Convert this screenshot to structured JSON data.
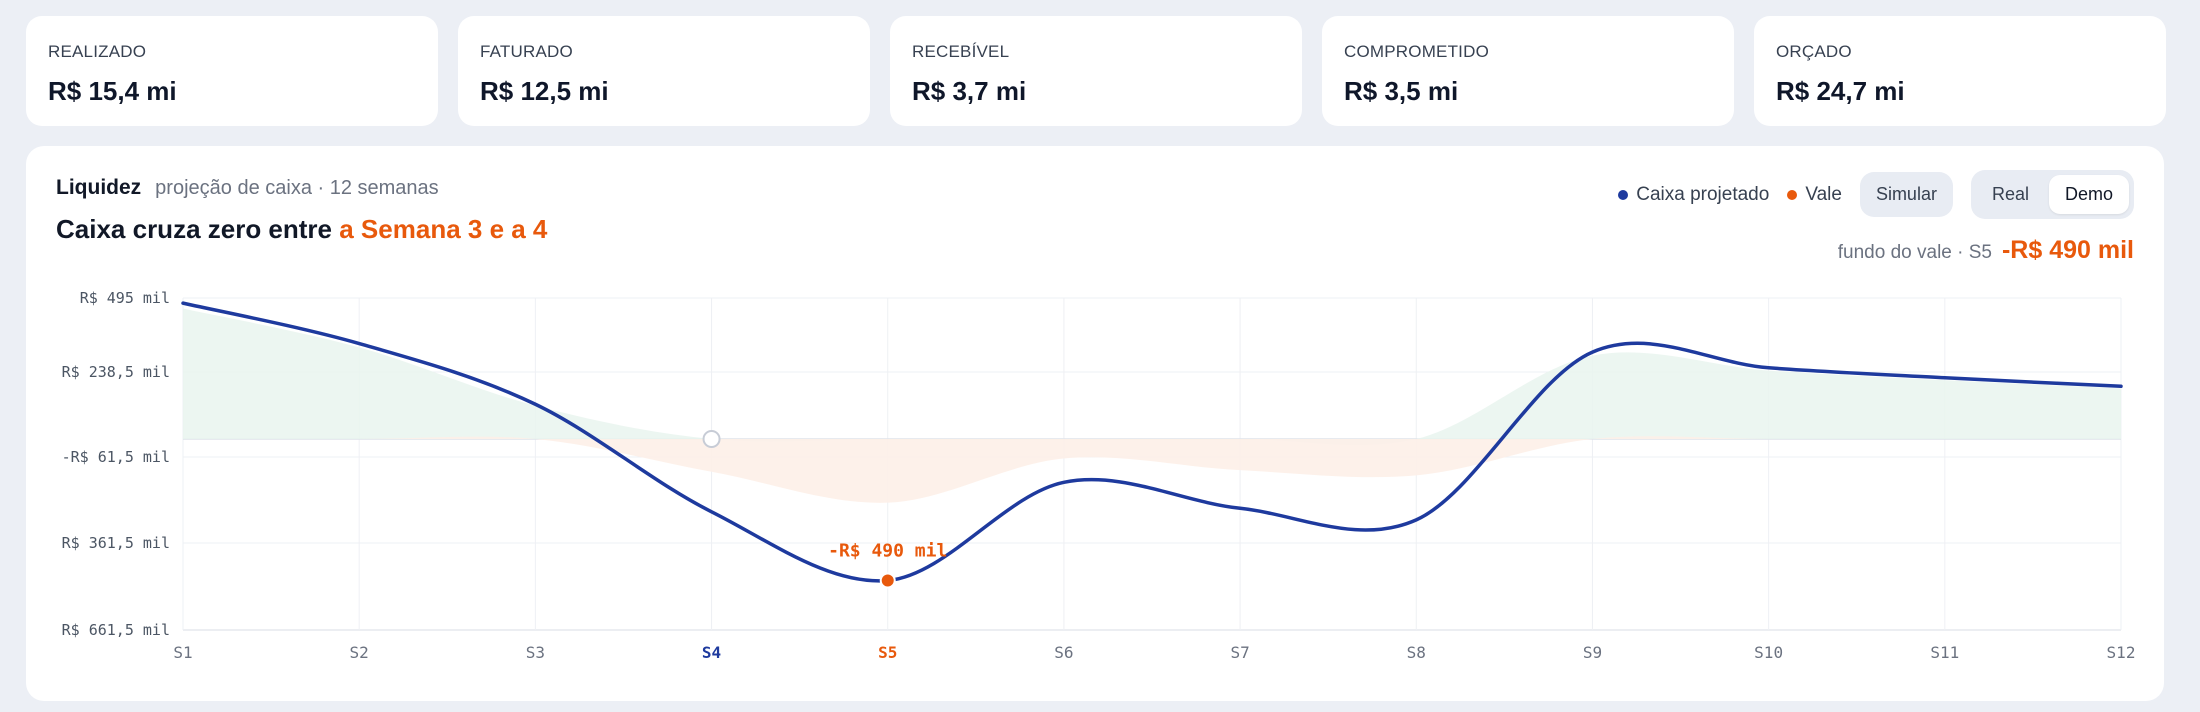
{
  "kpis": [
    {
      "label": "REALIZADO",
      "value": "R$ 15,4 mi"
    },
    {
      "label": "FATURADO",
      "value": "R$ 12,5 mi"
    },
    {
      "label": "RECEBÍVEL",
      "value": "R$ 3,7 mi"
    },
    {
      "label": "COMPROMETIDO",
      "value": "R$ 3,5 mi"
    },
    {
      "label": "ORÇADO",
      "value": "R$ 24,7 mi"
    }
  ],
  "panel": {
    "title": "Liquidez",
    "subtitle": "projeção de caixa · 12 semanas",
    "headline_prefix": "Caixa cruza zero entre",
    "headline_highlight": "a Semana 3 e a 4",
    "legend": [
      {
        "label": "Caixa projetado",
        "color": "#1e3a9e"
      },
      {
        "label": "Vale",
        "color": "#e8590c"
      }
    ],
    "simulate_label": "Simular",
    "toggle": {
      "options": [
        "Real",
        "Demo"
      ],
      "selected": "Demo"
    },
    "valley_label": "fundo do vale · S5",
    "valley_value": "-R$ 490 mil"
  },
  "colors": {
    "line": "#1e3a9e",
    "accent": "#e8590c",
    "positive_fill": "#e9f5ef",
    "negative_fill": "#fdf0e8"
  },
  "chart_data": {
    "type": "line",
    "x": [
      "S1",
      "S2",
      "S3",
      "S4",
      "S5",
      "S6",
      "S7",
      "S8",
      "S9",
      "S10",
      "S11",
      "S12"
    ],
    "series": [
      {
        "name": "Caixa projetado",
        "values": [
          477,
          335,
          122,
          -252,
          -490,
          -150,
          -240,
          -280,
          305,
          250,
          215,
          185
        ]
      }
    ],
    "y_ticks": [
      "R$ 495 mil",
      "R$ 238,5 mil",
      "-R$ 61,5 mil",
      "R$ 361,5 mil",
      "R$ 661,5 mil"
    ],
    "ylim": [
      -661.5,
      495
    ],
    "highlight_ticks": {
      "S4": "#1e3a9e",
      "S5": "#e8590c"
    },
    "annotation": {
      "x": "S5",
      "label": "-R$ 490 mil"
    },
    "crossing_marker_x": "S4",
    "grid": true
  }
}
